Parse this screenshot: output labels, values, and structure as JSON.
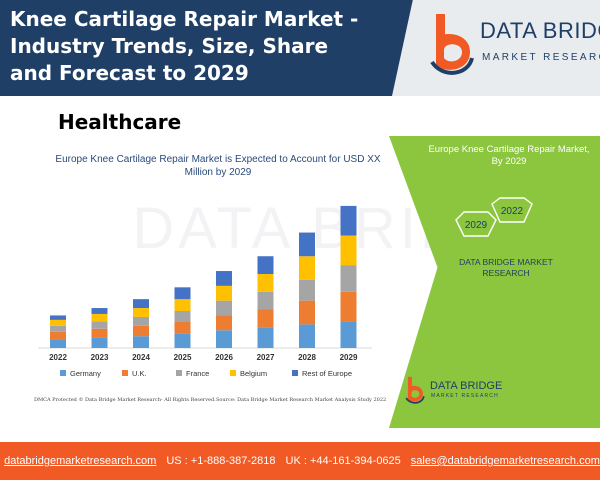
{
  "header": {
    "title": "Knee Cartilage Repair Market - Industry Trends, Size, Share and Forecast to 2029",
    "logo_main": "DATA BRIDGE",
    "logo_sub": "MARKET RESEARCH"
  },
  "category": "Healthcare",
  "watermark": "DATA BRIDGE",
  "chart_data": {
    "type": "bar",
    "stacked": true,
    "title": "Europe Knee Cartilage Repair Market is Expected to Account for USD XX Million by 2029",
    "categories": [
      "2022",
      "2023",
      "2024",
      "2025",
      "2026",
      "2027",
      "2028",
      "2029"
    ],
    "series": [
      {
        "name": "Germany",
        "color": "#5b9bd5",
        "values": [
          3,
          3.5,
          4,
          5,
          6,
          7,
          8,
          9
        ]
      },
      {
        "name": "U.K.",
        "color": "#ed7d31",
        "values": [
          2.5,
          3,
          3.5,
          4,
          5,
          6,
          8,
          10
        ]
      },
      {
        "name": "France",
        "color": "#a5a5a5",
        "values": [
          2,
          2.5,
          3,
          3.5,
          5,
          6,
          7,
          9
        ]
      },
      {
        "name": "Belgium",
        "color": "#ffc000",
        "values": [
          2,
          2.5,
          3,
          4,
          5,
          6,
          8,
          10
        ]
      },
      {
        "name": "Rest of Europe",
        "color": "#4472c4",
        "values": [
          1.5,
          2,
          3,
          4,
          5,
          6,
          8,
          10
        ]
      }
    ],
    "ylim": [
      0,
      50
    ],
    "legend_position": "bottom",
    "grid": false
  },
  "notes": {
    "dmca": "DMCA Protected © Data Bridge Market Research- All Rights Reserved.",
    "source": "Source: Data Bridge Market Research Market Analysis Study 2022"
  },
  "panel": {
    "title": "Europe Knee Cartilage Repair Market, By 2029",
    "hex_2022": "2022",
    "hex_2029": "2029",
    "brand": "DATA BRIDGE MARKET RESEARCH",
    "logo_main": "DATA BRIDGE",
    "logo_sub": "MARKET RESEARCH"
  },
  "footer": {
    "website": "databridgemarketresearch.com",
    "us_phone": "US : +1-888-387-2818",
    "uk_phone": "UK : +44-161-394-0625",
    "email": "sales@databridgemarketresearch.com"
  },
  "colors": {
    "header_bg": "#1f3f66",
    "accent_orange": "#f15a24",
    "panel_green": "#8cc63f"
  }
}
